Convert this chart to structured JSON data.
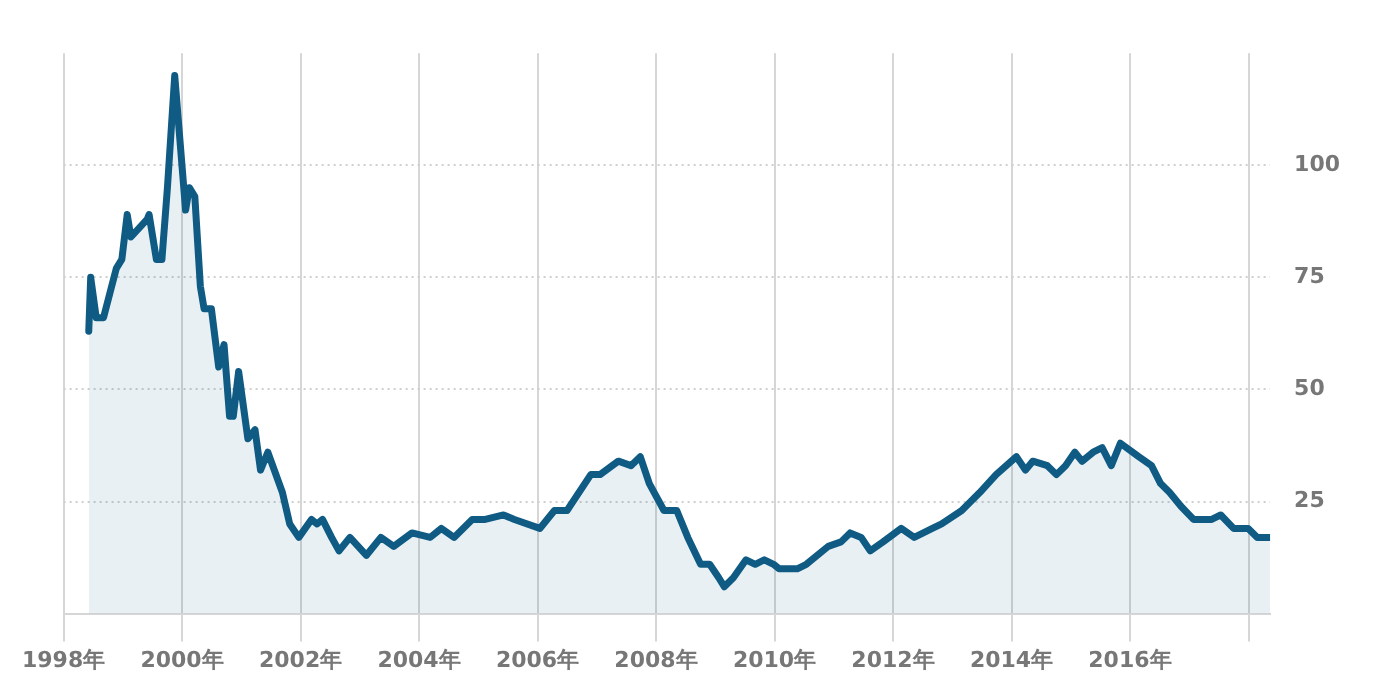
{
  "chart_data": {
    "type": "area",
    "x": [
      "1998-06-05",
      "1998-06-17",
      "1998-07-21",
      "1998-09-04",
      "1998-11-22",
      "1998-12-26",
      "1999-01-28",
      "1999-02-20",
      "1999-06-01",
      "1999-06-12",
      "1999-07-27",
      "1999-08-30",
      "1999-10-03",
      "1999-11-17",
      "2000-01-23",
      "2000-02-15",
      "2000-03-20",
      "2000-04-23",
      "2000-05-16",
      "2000-06-30",
      "2000-08-14",
      "2000-09-16",
      "2000-10-20",
      "2000-11-12",
      "2000-12-15",
      "2001-02-10",
      "2001-03-26",
      "2001-04-29",
      "2001-06-13",
      "2001-09-11",
      "2001-10-26",
      "2001-12-21",
      "2002-03-09",
      "2002-04-13",
      "2002-05-16",
      "2002-07-11",
      "2002-08-26",
      "2002-11-01",
      "2003-02-11",
      "2003-05-11",
      "2003-07-29",
      "2003-11-19",
      "2004-03-10",
      "2004-05-17",
      "2004-08-04",
      "2004-11-24",
      "2005-02-12",
      "2005-06-05",
      "2005-08-11",
      "2006-01-15",
      "2006-04-15",
      "2006-07-02",
      "2006-11-25",
      "2007-01-21",
      "2007-05-14",
      "2007-07-31",
      "2007-09-26",
      "2007-11-21",
      "2008-02-19",
      "2008-05-08",
      "2008-07-15",
      "2008-10-02",
      "2008-11-27",
      "2009-01-22",
      "2009-02-25",
      "2009-04-22",
      "2009-07-09",
      "2009-09-04",
      "2009-10-30",
      "2009-12-26",
      "2010-01-29",
      "2010-05-21",
      "2010-07-16",
      "2010-11-28",
      "2011-02-15",
      "2011-04-12",
      "2011-06-19",
      "2011-08-14",
      "2011-11-01",
      "2012-02-21",
      "2012-05-11",
      "2012-08-31",
      "2012-10-27",
      "2013-02-28",
      "2013-06-19",
      "2013-09-28",
      "2014-01-31",
      "2014-03-28",
      "2014-05-12",
      "2014-08-10",
      "2014-10-05",
      "2014-11-30",
      "2015-01-26",
      "2015-03-12",
      "2015-05-19",
      "2015-07-14",
      "2015-09-08",
      "2015-11-03",
      "2016-02-24",
      "2016-05-13",
      "2016-07-08",
      "2016-09-02",
      "2016-11-09",
      "2017-01-27",
      "2017-05-19",
      "2017-07-14",
      "2017-10-01",
      "2017-12-30",
      "2018-02-24",
      "2018-05-14"
    ],
    "series": [
      {
        "color": "#0f5b84",
        "values": [
          63,
          75,
          66,
          66,
          77,
          79,
          89,
          84,
          88,
          89,
          79,
          79,
          95,
          120,
          90,
          95,
          93,
          73,
          68,
          68,
          55,
          60,
          44,
          44,
          54,
          39,
          41,
          32,
          36,
          27,
          20,
          17,
          21,
          20,
          21,
          17,
          14,
          17,
          13,
          17,
          15,
          18,
          17,
          19,
          17,
          21,
          21,
          22,
          21,
          19,
          23,
          23,
          31,
          31,
          34,
          33,
          35,
          29,
          23,
          23,
          17,
          11,
          11,
          8,
          6,
          8,
          12,
          11,
          12,
          11,
          10,
          10,
          11,
          15,
          16,
          18,
          17,
          14,
          16,
          19,
          17,
          19,
          20,
          23,
          27,
          31,
          35,
          32,
          34,
          33,
          31,
          33,
          36,
          34,
          36,
          37,
          33,
          38,
          35,
          33,
          29,
          27,
          24,
          21,
          21,
          22,
          19,
          19,
          17,
          17
        ]
      }
    ],
    "xlim": [
      "1998-01-01",
      "2018-05-14"
    ],
    "xticks": [
      {
        "value": "1998-01-01",
        "label": "1998年"
      },
      {
        "value": "2000-01-01",
        "label": "2000年"
      },
      {
        "value": "2002-01-01",
        "label": "2002年"
      },
      {
        "value": "2004-01-01",
        "label": "2004年"
      },
      {
        "value": "2006-01-01",
        "label": "2006年"
      },
      {
        "value": "2008-01-01",
        "label": "2008年"
      },
      {
        "value": "2010-01-01",
        "label": "2010年"
      },
      {
        "value": "2012-01-01",
        "label": "2012年"
      },
      {
        "value": "2014-01-01",
        "label": "2014年"
      },
      {
        "value": "2016-01-01",
        "label": "2016年"
      },
      {
        "value": "2018-01-01",
        "label": null
      }
    ],
    "ylim": [
      0,
      125
    ],
    "yticks": [
      25,
      50,
      75,
      100
    ],
    "grid": true,
    "legend": false,
    "marker": "none",
    "line_style": "solid"
  }
}
